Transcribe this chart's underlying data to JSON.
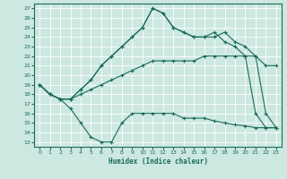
{
  "xlabel": "Humidex (Indice chaleur)",
  "bg_color": "#cce8e0",
  "line_color": "#1a6b5a",
  "grid_color": "#ffffff",
  "xlim": [
    -0.5,
    23.5
  ],
  "ylim": [
    12.5,
    27.5
  ],
  "yticks": [
    13,
    14,
    15,
    16,
    17,
    18,
    19,
    20,
    21,
    22,
    23,
    24,
    25,
    26,
    27
  ],
  "xticks": [
    0,
    1,
    2,
    3,
    4,
    5,
    6,
    7,
    8,
    9,
    10,
    11,
    12,
    13,
    14,
    15,
    16,
    17,
    18,
    19,
    20,
    21,
    22,
    23
  ],
  "line1_x": [
    0,
    1,
    2,
    3,
    4,
    5,
    6,
    7,
    8,
    9,
    10,
    11,
    12,
    13,
    14,
    15,
    16,
    17,
    18,
    19,
    20,
    21,
    22,
    23
  ],
  "line1_y": [
    19,
    18,
    17.5,
    16.5,
    15,
    13.5,
    13,
    13,
    15,
    16,
    16,
    16,
    16,
    16,
    15.5,
    15.5,
    15.5,
    15.2,
    15.0,
    14.8,
    14.7,
    14.5,
    14.5,
    14.5
  ],
  "line2_x": [
    0,
    1,
    2,
    3,
    4,
    5,
    6,
    7,
    8,
    9,
    10,
    11,
    12,
    13,
    14,
    15,
    16,
    17,
    18,
    19,
    20,
    21,
    22,
    23
  ],
  "line2_y": [
    19,
    18,
    17.5,
    17.5,
    18,
    18.5,
    19,
    19.5,
    20,
    20.5,
    21,
    21.5,
    21.5,
    21.5,
    21.5,
    21.5,
    22,
    22,
    22,
    22,
    22,
    22,
    21,
    21
  ],
  "line3_x": [
    0,
    1,
    2,
    3,
    4,
    5,
    6,
    7,
    8,
    9,
    10,
    11,
    12,
    13,
    14,
    15,
    16,
    17,
    18,
    19,
    20,
    21,
    22,
    23
  ],
  "line3_y": [
    19,
    18,
    17.5,
    17.5,
    18.5,
    19.5,
    21,
    22,
    23,
    24,
    25,
    27,
    26.5,
    25,
    24.5,
    24,
    24,
    24,
    24.5,
    23.5,
    23,
    22,
    16,
    14.5
  ],
  "line4_x": [
    0,
    1,
    2,
    3,
    4,
    5,
    6,
    7,
    8,
    9,
    10,
    11,
    12,
    13,
    14,
    15,
    16,
    17,
    18,
    19,
    20,
    21,
    22,
    23
  ],
  "line4_y": [
    19,
    18,
    17.5,
    17.5,
    18.5,
    19.5,
    21,
    22,
    23,
    24,
    25,
    27,
    26.5,
    25,
    24.5,
    24,
    24,
    24.5,
    23.5,
    23,
    22,
    16,
    14.5,
    14.5
  ]
}
